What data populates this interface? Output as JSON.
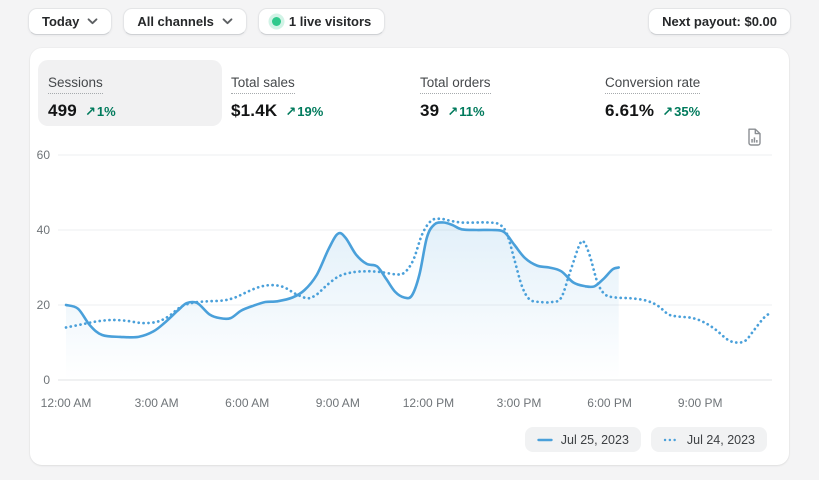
{
  "topbar": {
    "date_filter": "Today",
    "channel_filter": "All channels",
    "live_visitors": "1 live visitors",
    "next_payout": "Next payout: $0.00"
  },
  "icons": {
    "trend_up": "↗"
  },
  "metrics": [
    {
      "label": "Sessions",
      "value": "499",
      "delta": "1%",
      "direction": "up",
      "selected": true
    },
    {
      "label": "Total sales",
      "value": "$1.4K",
      "delta": "19%",
      "direction": "up",
      "selected": false
    },
    {
      "label": "Total orders",
      "value": "39",
      "delta": "11%",
      "direction": "up",
      "selected": false
    },
    {
      "label": "Conversion rate",
      "value": "6.61%",
      "delta": "35%",
      "direction": "up",
      "selected": false
    }
  ],
  "chart_data": {
    "type": "line",
    "metric": "Sessions",
    "grid": true,
    "legend_position": "bottom-right",
    "x_axis": {
      "ticks": [
        "12:00 AM",
        "3:00 AM",
        "6:00 AM",
        "9:00 AM",
        "12:00 PM",
        "3:00 PM",
        "6:00 PM",
        "9:00 PM"
      ],
      "tick_hours": [
        0,
        3,
        6,
        9,
        12,
        15,
        18,
        21
      ],
      "range_hours": [
        0,
        24
      ]
    },
    "y_axis": {
      "ticks": [
        0,
        20,
        40,
        60
      ],
      "range": [
        0,
        60
      ]
    },
    "series": [
      {
        "name": "Jul 25, 2023",
        "style": "solid",
        "color": "#4aa0da",
        "area_fill": true,
        "points": [
          [
            0,
            20
          ],
          [
            0.4,
            19
          ],
          [
            0.8,
            14.5
          ],
          [
            1.2,
            12
          ],
          [
            1.8,
            11.5
          ],
          [
            2.4,
            11.5
          ],
          [
            2.9,
            13
          ],
          [
            3.3,
            15.5
          ],
          [
            3.7,
            18.5
          ],
          [
            4,
            20.5
          ],
          [
            4.35,
            20.5
          ],
          [
            4.75,
            17.5
          ],
          [
            5.1,
            16.5
          ],
          [
            5.45,
            16.5
          ],
          [
            5.8,
            18.5
          ],
          [
            6.2,
            19.8
          ],
          [
            6.6,
            20.8
          ],
          [
            7,
            21
          ],
          [
            7.5,
            22
          ],
          [
            7.9,
            24
          ],
          [
            8.3,
            28
          ],
          [
            8.7,
            35
          ],
          [
            9,
            39
          ],
          [
            9.25,
            38
          ],
          [
            9.6,
            33.5
          ],
          [
            9.95,
            31
          ],
          [
            10.3,
            30.3
          ],
          [
            10.6,
            27
          ],
          [
            10.9,
            23.5
          ],
          [
            11.2,
            22
          ],
          [
            11.45,
            22.5
          ],
          [
            11.7,
            28
          ],
          [
            11.95,
            38
          ],
          [
            12.2,
            41.5
          ],
          [
            12.5,
            42
          ],
          [
            12.8,
            41.3
          ],
          [
            13.1,
            40.2
          ],
          [
            13.6,
            40
          ],
          [
            14.1,
            40
          ],
          [
            14.5,
            39.5
          ],
          [
            14.85,
            36
          ],
          [
            15.2,
            32.5
          ],
          [
            15.6,
            30.5
          ],
          [
            16,
            30
          ],
          [
            16.4,
            29
          ],
          [
            16.8,
            26
          ],
          [
            17.2,
            25
          ],
          [
            17.5,
            25
          ],
          [
            17.8,
            27
          ],
          [
            18.1,
            29.5
          ],
          [
            18.3,
            30
          ]
        ]
      },
      {
        "name": "Jul 24, 2023",
        "style": "dotted",
        "color": "#4aa0da",
        "area_fill": false,
        "points": [
          [
            0,
            14
          ],
          [
            0.5,
            14.8
          ],
          [
            1,
            15.6
          ],
          [
            1.5,
            16
          ],
          [
            2,
            15.8
          ],
          [
            2.5,
            15.2
          ],
          [
            3,
            15.5
          ],
          [
            3.4,
            17
          ],
          [
            3.8,
            19.5
          ],
          [
            4.2,
            20.6
          ],
          [
            4.7,
            21
          ],
          [
            5.2,
            21.2
          ],
          [
            5.6,
            22
          ],
          [
            6,
            23.5
          ],
          [
            6.4,
            24.8
          ],
          [
            6.8,
            25.3
          ],
          [
            7.2,
            24.8
          ],
          [
            7.6,
            23
          ],
          [
            8,
            21.8
          ],
          [
            8.3,
            22.8
          ],
          [
            8.6,
            25
          ],
          [
            9,
            27.5
          ],
          [
            9.4,
            28.6
          ],
          [
            9.9,
            29
          ],
          [
            10.4,
            28.8
          ],
          [
            10.9,
            28.2
          ],
          [
            11.2,
            28.6
          ],
          [
            11.5,
            32
          ],
          [
            11.8,
            39
          ],
          [
            12.1,
            42.5
          ],
          [
            12.4,
            43
          ],
          [
            12.7,
            42.5
          ],
          [
            13.1,
            42
          ],
          [
            13.6,
            42
          ],
          [
            14,
            42
          ],
          [
            14.35,
            41.5
          ],
          [
            14.6,
            39
          ],
          [
            14.85,
            32
          ],
          [
            15.1,
            25
          ],
          [
            15.35,
            21.5
          ],
          [
            15.7,
            20.8
          ],
          [
            16.1,
            20.8
          ],
          [
            16.4,
            22
          ],
          [
            16.7,
            29
          ],
          [
            17,
            36
          ],
          [
            17.15,
            36.8
          ],
          [
            17.35,
            33
          ],
          [
            17.6,
            26
          ],
          [
            17.85,
            22.8
          ],
          [
            18.2,
            22
          ],
          [
            18.7,
            21.8
          ],
          [
            19.2,
            21.2
          ],
          [
            19.6,
            19.8
          ],
          [
            19.95,
            17.5
          ],
          [
            20.3,
            16.9
          ],
          [
            20.7,
            16.6
          ],
          [
            21.1,
            15.5
          ],
          [
            21.5,
            13.5
          ],
          [
            21.9,
            10.8
          ],
          [
            22.2,
            10
          ],
          [
            22.5,
            10.5
          ],
          [
            22.8,
            13.5
          ],
          [
            23.1,
            16.5
          ],
          [
            23.3,
            17.8
          ]
        ]
      }
    ]
  },
  "colors": {
    "accent_blue": "#4aa0da",
    "positive_green": "#007a5c",
    "live_dot_green": "#2fc98c",
    "page_bg": "#f4f4f5",
    "card_bg": "#ffffff",
    "tile_bg": "#f1f1f2",
    "grid_line": "#edeff0",
    "axis_text": "#6f7478"
  }
}
